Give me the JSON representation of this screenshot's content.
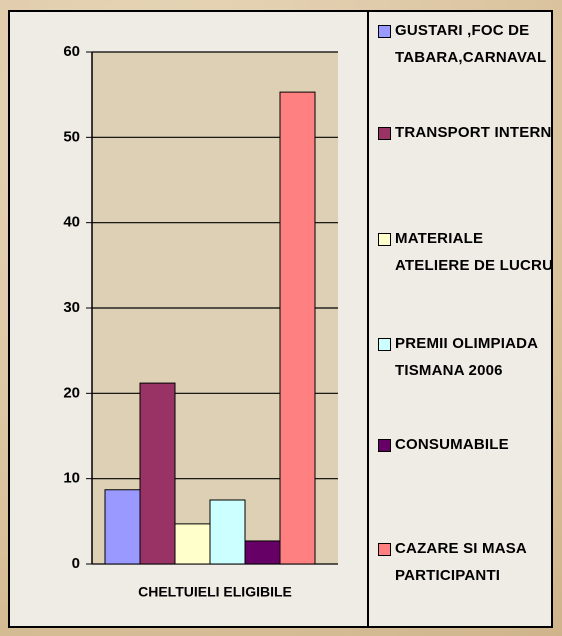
{
  "chart_data": {
    "type": "bar",
    "categories": [
      "CHELTUIELI ELIGIBILE"
    ],
    "series": [
      {
        "name": "GUSTARI ,FOC DE TABARA,CARNAVAL",
        "color": "#9999ff",
        "values": [
          8.7
        ]
      },
      {
        "name": "TRANSPORT INTERN",
        "color": "#993366",
        "values": [
          21.2
        ]
      },
      {
        "name": "MATERIALE ATELIERE DE LUCRU",
        "color": "#ffffcc",
        "values": [
          4.7
        ]
      },
      {
        "name": "PREMII OLIMPIADA TISMANA 2006",
        "color": "#ccffff",
        "values": [
          7.5
        ]
      },
      {
        "name": "CONSUMABILE",
        "color": "#660066",
        "values": [
          2.7
        ]
      },
      {
        "name": "CAZARE SI MASA PARTICIPANTI",
        "color": "#ff8080",
        "values": [
          55.3
        ]
      }
    ],
    "ylim": [
      0,
      60
    ],
    "yticks": [
      0,
      10,
      20,
      30,
      40,
      50,
      60
    ],
    "grid": true,
    "legend": "right"
  }
}
